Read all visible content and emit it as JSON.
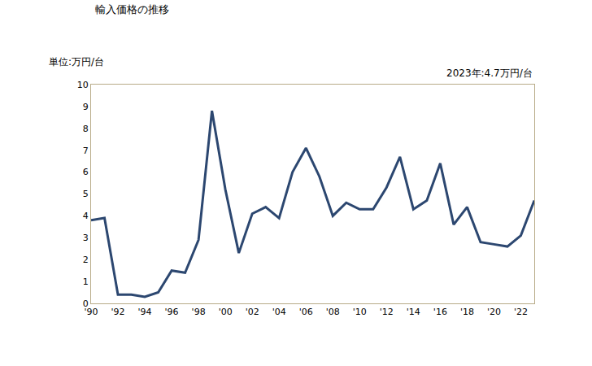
{
  "chart_data": {
    "type": "line",
    "title": "輸入価格の推移",
    "y_label": "単位:万円/台",
    "annotations": [
      "2023年:4.7万円/台"
    ],
    "categories": [
      "'90",
      null,
      "'92",
      null,
      "'94",
      null,
      "'96",
      null,
      "'98",
      null,
      "'00",
      null,
      "'02",
      null,
      "'04",
      null,
      "'06",
      null,
      "'08",
      null,
      "'10",
      null,
      "'12",
      null,
      "'14",
      null,
      "'16",
      null,
      "'18",
      null,
      "'20",
      null,
      "'22",
      null
    ],
    "values": [
      3.8,
      3.9,
      0.4,
      0.4,
      0.3,
      0.5,
      1.5,
      1.4,
      2.9,
      8.8,
      5.2,
      2.3,
      4.1,
      4.4,
      3.9,
      6.0,
      7.1,
      5.8,
      4.0,
      4.6,
      4.3,
      4.3,
      5.3,
      6.7,
      4.3,
      4.7,
      6.4,
      3.6,
      4.4,
      2.8,
      2.7,
      2.6,
      3.1,
      4.7
    ],
    "color": "#2c4770",
    "ylim": [
      0,
      10
    ],
    "yticks": [
      0,
      1,
      2,
      3,
      4,
      5,
      6,
      7,
      8,
      9,
      10
    ],
    "grid": false
  }
}
